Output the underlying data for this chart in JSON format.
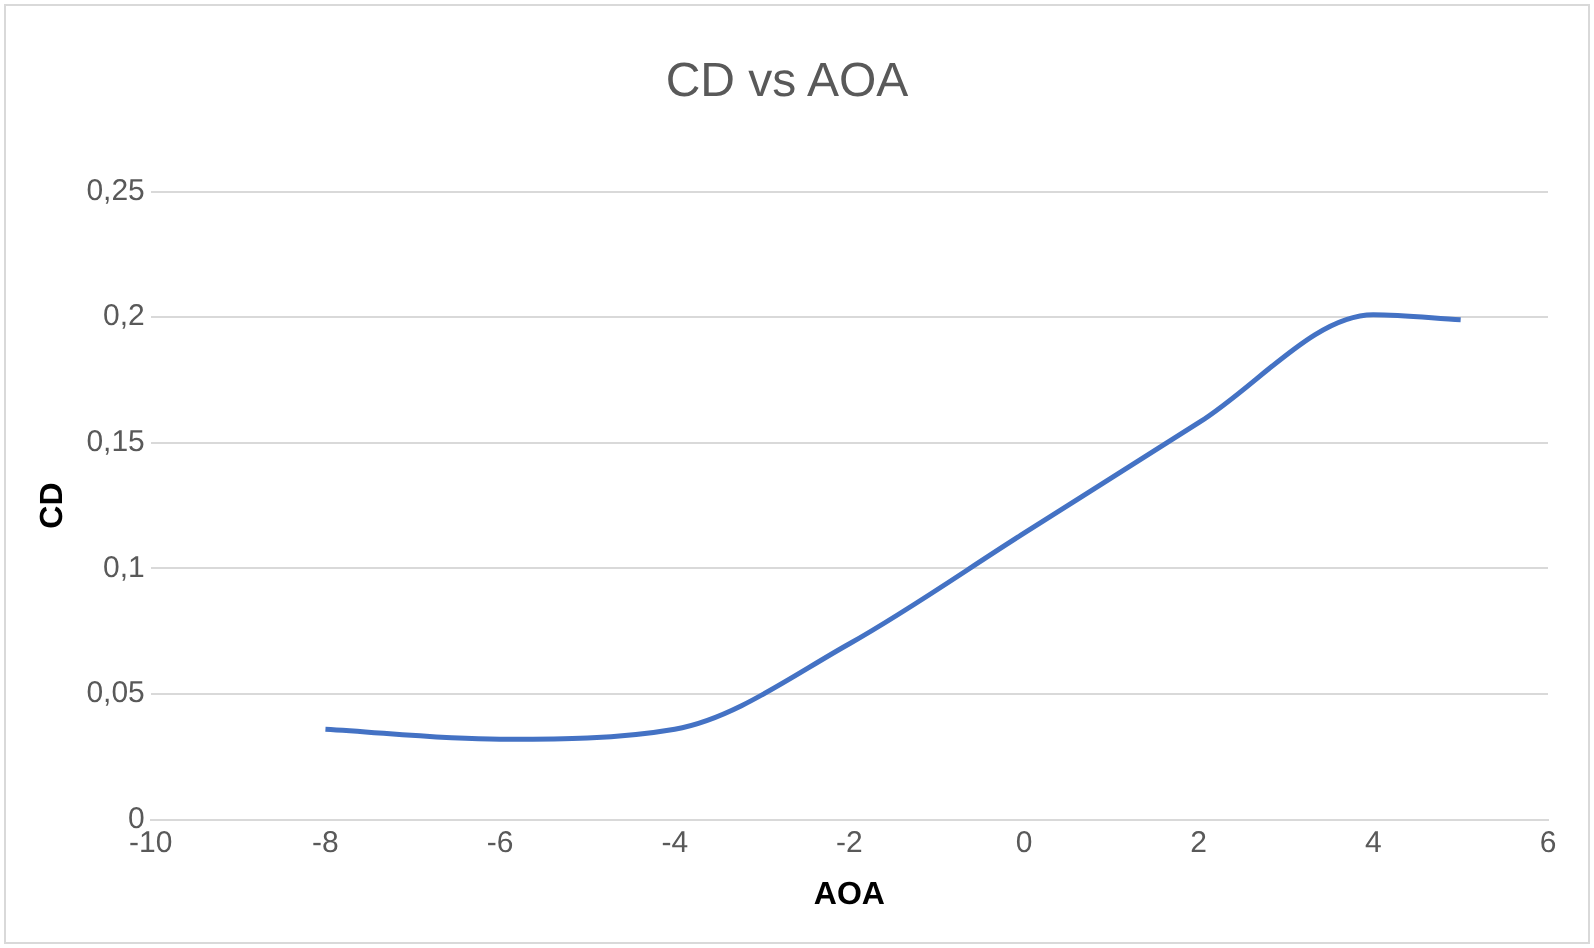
{
  "chart_data": {
    "type": "line",
    "title": "CD vs AOA",
    "xlabel": "AOA",
    "ylabel": "CD",
    "x": [
      -8,
      -6,
      -4,
      -2,
      0,
      2,
      4,
      5
    ],
    "series": [
      {
        "color": "#4472c4",
        "values": [
          0.036,
          0.032,
          0.036,
          0.07,
          0.114,
          0.158,
          0.201,
          0.199
        ]
      }
    ],
    "xlim": [
      -10,
      6
    ],
    "xticks": [
      -10,
      -8,
      -6,
      -4,
      -2,
      0,
      2,
      4,
      6
    ],
    "ylim": [
      0,
      0.25
    ],
    "yticks": [
      0,
      {
        "value": 0.05,
        "label": "0,05"
      },
      {
        "value": 0.1,
        "label": "0,1"
      },
      {
        "value": 0.15,
        "label": "0,15"
      },
      {
        "value": 0.2,
        "label": "0,2"
      },
      {
        "value": 0.25,
        "label": "0,25"
      }
    ],
    "grid": "y",
    "legend": false,
    "marker": "none",
    "line_style": "solid"
  }
}
